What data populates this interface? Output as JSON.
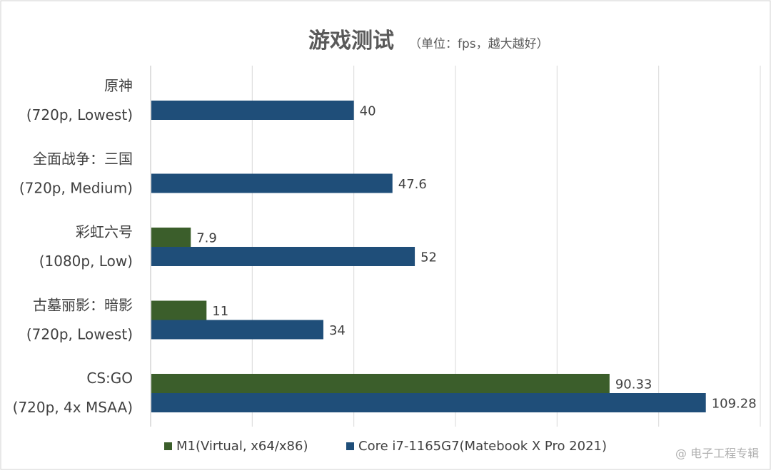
{
  "chart_data": {
    "type": "bar",
    "orientation": "horizontal",
    "title": "游戏测试",
    "subtitle": "（单位：fps，越大越好）",
    "categories": [
      {
        "line1": "原神",
        "line2": "(720p, Lowest)"
      },
      {
        "line1": "全面战争：三国",
        "line2": "(720p, Medium)"
      },
      {
        "line1": "彩虹六号",
        "line2": "(1080p, Low)"
      },
      {
        "line1": "古墓丽影：暗影",
        "line2": "(720p, Lowest)"
      },
      {
        "line1": "CS:GO",
        "line2": "(720p, 4x MSAA)"
      }
    ],
    "series": [
      {
        "name": "M1(Virtual, x64/x86)",
        "color": "#3b5e2b",
        "values": [
          null,
          null,
          7.9,
          11,
          90.33
        ],
        "labels": [
          "",
          "",
          "7.9",
          "11",
          "90.33"
        ]
      },
      {
        "name": "Core i7-1165G7(Matebook X Pro 2021)",
        "color": "#1f4e79",
        "values": [
          40,
          47.6,
          52,
          34,
          109.28
        ],
        "labels": [
          "40",
          "47.6",
          "52",
          "34",
          "109.28"
        ]
      }
    ],
    "xlim": [
      0,
      120
    ],
    "x_major_step": 20,
    "grid": true,
    "legend_position": "bottom"
  },
  "watermark": "@ 电子工程专辑",
  "colors": {
    "grid": "#d9d9d9",
    "axis": "#bfbfbf",
    "text": "#404040",
    "title": "#595959",
    "border": "#d0d0d0"
  }
}
